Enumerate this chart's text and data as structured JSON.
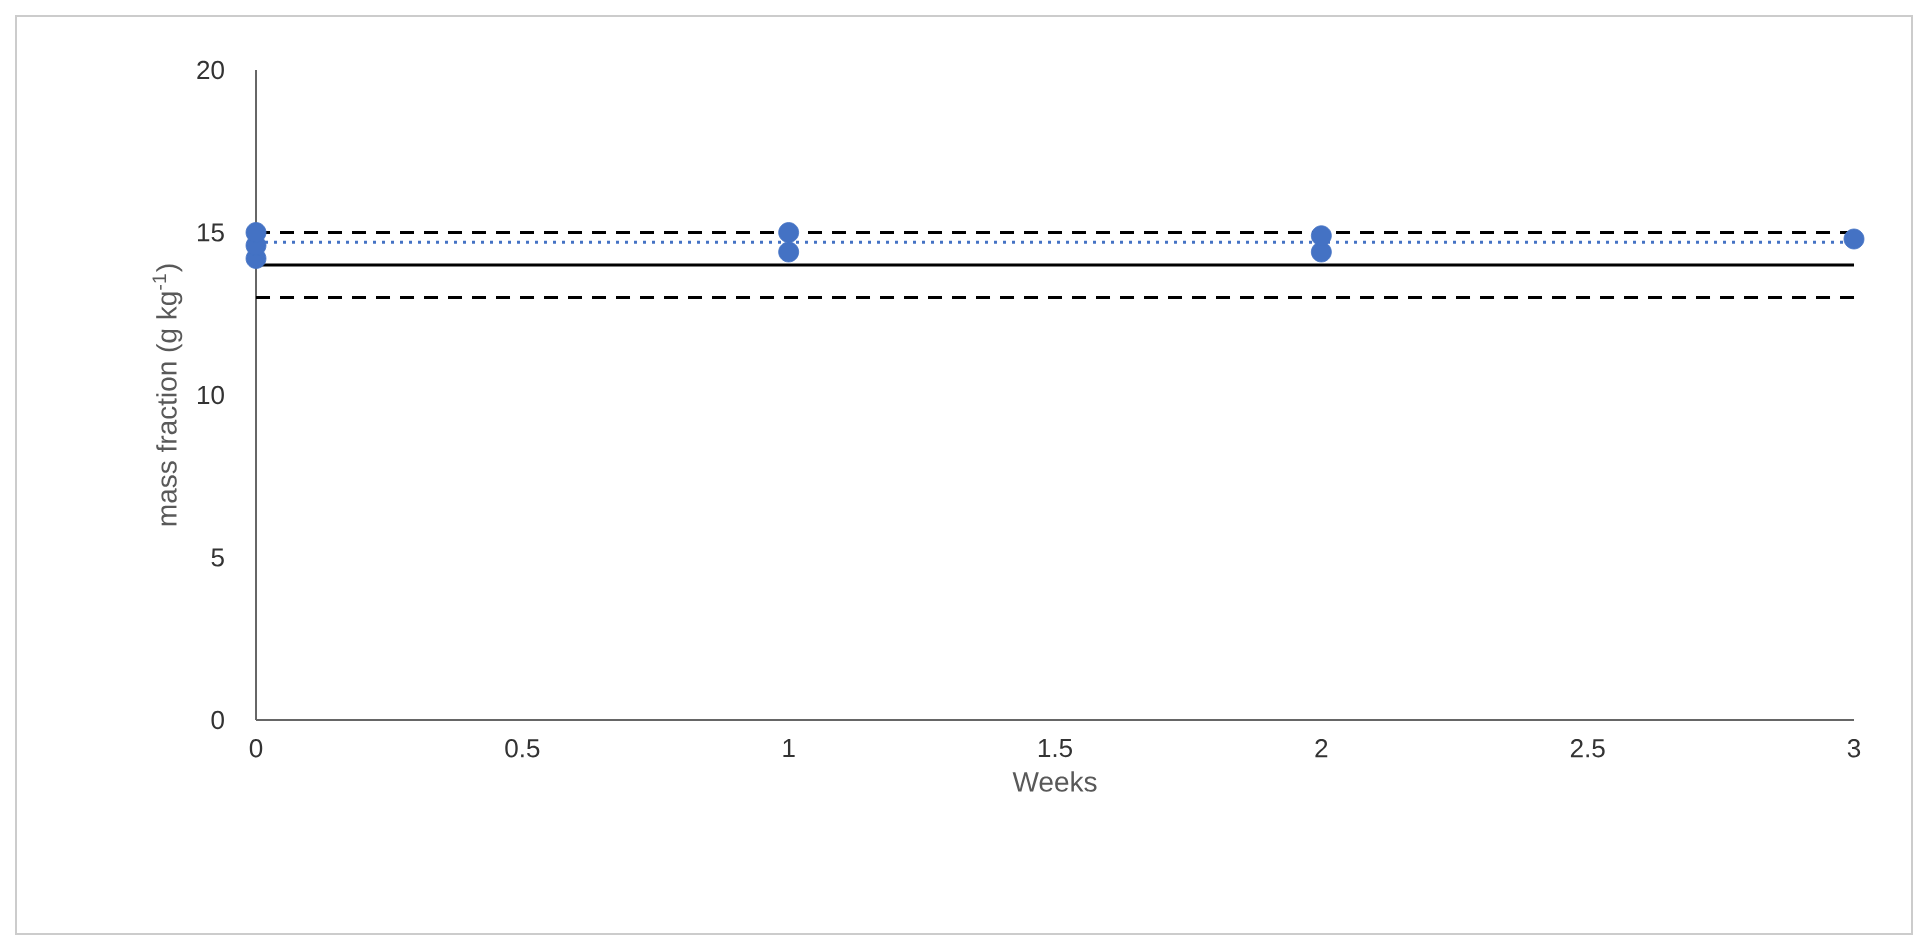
{
  "chart_data": {
    "type": "scatter",
    "xlabel": "Weeks",
    "ylabel": "mass fraction (g kg$^{-1}$)",
    "xlim": [
      0,
      3
    ],
    "ylim": [
      0,
      20
    ],
    "xticks": [
      0,
      0.5,
      1,
      1.5,
      2,
      2.5,
      3
    ],
    "yticks": [
      0,
      5,
      10,
      15,
      20
    ],
    "marker": "circle",
    "grid": false,
    "series": [
      {
        "color": "#4472c4",
        "x": [
          0,
          0,
          0,
          1,
          1,
          2,
          2,
          3
        ],
        "values": [
          14.2,
          14.6,
          15.0,
          14.4,
          15.0,
          14.4,
          14.9,
          14.8
        ]
      }
    ],
    "ref_lines": [
      {
        "axis": "y",
        "value": 15,
        "color": "#000000",
        "line_style": "dashed"
      },
      {
        "axis": "y",
        "value": 14.7,
        "color": "#4472c4",
        "line_style": "dotted"
      },
      {
        "axis": "y",
        "value": 14,
        "color": "#000000",
        "line_style": "solid"
      },
      {
        "axis": "y",
        "value": 13,
        "color": "#000000",
        "line_style": "dashed"
      }
    ]
  }
}
